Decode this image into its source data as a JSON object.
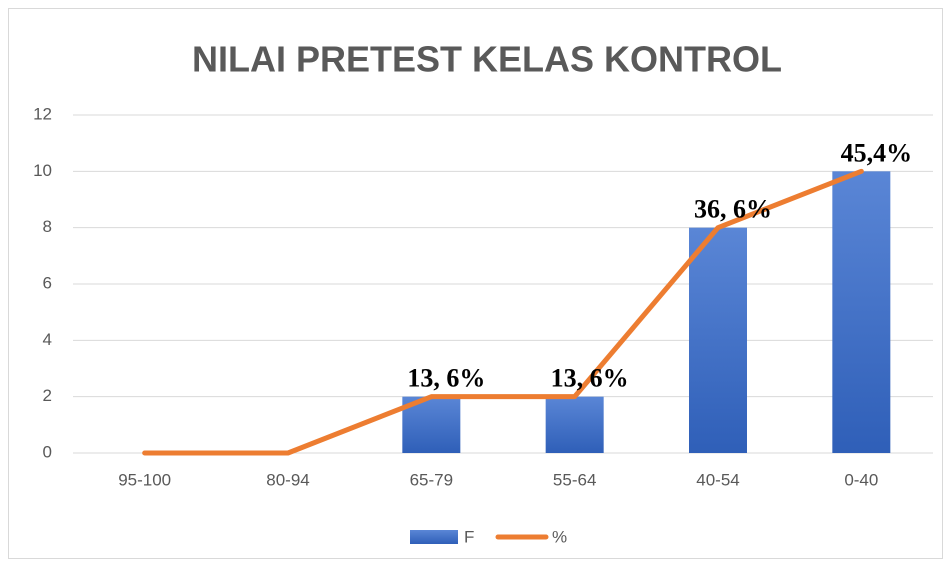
{
  "chart_data": {
    "type": "bar",
    "title": "NILAI PRETEST KELAS KONTROL",
    "categories": [
      "95-100",
      "80-94",
      "65-79",
      "55-64",
      "40-54",
      "0-40"
    ],
    "series": [
      {
        "name": "F",
        "type": "bar",
        "color": "#4472c4",
        "values": [
          0,
          0,
          2,
          2,
          8,
          10
        ]
      },
      {
        "name": "%",
        "type": "line",
        "color": "#ed7d31",
        "values": [
          0,
          0,
          2,
          2,
          8,
          10
        ]
      }
    ],
    "annotations": [
      "13, 6%",
      "13, 6%",
      "36, 6%",
      "45,4%"
    ],
    "ylim": [
      0,
      12
    ],
    "yticks": [
      0,
      2,
      4,
      6,
      8,
      10,
      12
    ],
    "grid": true,
    "legend": "bottom"
  }
}
